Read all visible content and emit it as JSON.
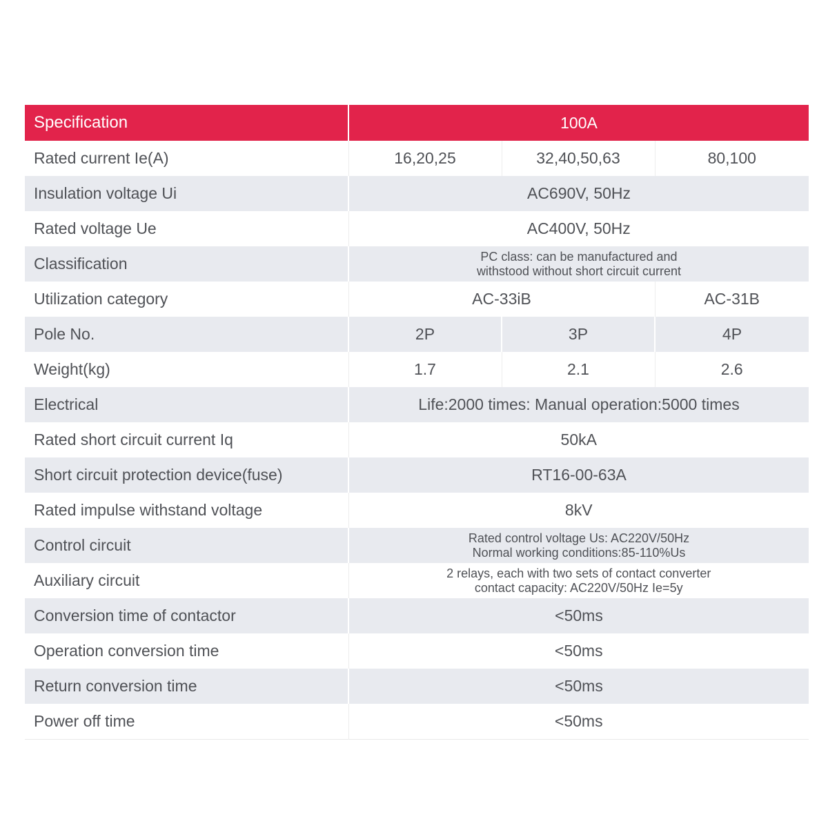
{
  "colors": {
    "header_bg": "#e2234b",
    "header_text": "#ffffff",
    "row_bg": "#ffffff",
    "row_alt_bg": "#e8eaef",
    "text": "#4f5156",
    "divider_light": "#ededed",
    "divider_white": "#ffffff",
    "table_border": "#e9e9e9"
  },
  "table": {
    "header": {
      "label": "Specification",
      "value": "100A"
    },
    "rows": [
      {
        "label": "Rated current Ie(A)",
        "cells": [
          "16,20,25",
          "32,40,50,63",
          "80,100"
        ]
      },
      {
        "label": "Insulation voltage Ui",
        "cells": [
          "AC690V, 50Hz"
        ]
      },
      {
        "label": "Rated voltage Ue",
        "cells": [
          "AC400V, 50Hz"
        ]
      },
      {
        "label": "Classification",
        "lines": [
          "PC class: can be manufactured and",
          "withstood without short circuit current"
        ]
      },
      {
        "label": "Utilization category",
        "cells": [
          {
            "text": "AC-33iB",
            "span": 2
          },
          {
            "text": "AC-31B",
            "span": 1
          }
        ]
      },
      {
        "label": "Pole No.",
        "cells": [
          "2P",
          "3P",
          "4P"
        ]
      },
      {
        "label": "Weight(kg)",
        "cells": [
          "1.7",
          "2.1",
          "2.6"
        ]
      },
      {
        "label": "Electrical",
        "cells": [
          "Life:2000 times: Manual operation:5000 times"
        ]
      },
      {
        "label": "Rated short circuit current Iq",
        "cells": [
          "50kA"
        ]
      },
      {
        "label": "Short circuit protection device(fuse)",
        "cells": [
          "RT16-00-63A"
        ]
      },
      {
        "label": "Rated impulse withstand voltage",
        "cells": [
          "8kV"
        ]
      },
      {
        "label": "Control circuit",
        "lines": [
          "Rated control voltage Us: AC220V/50Hz",
          "Normal working conditions:85-110%Us"
        ]
      },
      {
        "label": "Auxiliary circuit",
        "lines": [
          "2 relays, each with two sets of contact converter",
          "contact capacity: AC220V/50Hz Ie=5y"
        ]
      },
      {
        "label": "Conversion time of contactor",
        "cells": [
          "<50ms"
        ]
      },
      {
        "label": "Operation conversion time",
        "cells": [
          "<50ms"
        ]
      },
      {
        "label": "Return conversion time",
        "cells": [
          "<50ms"
        ]
      },
      {
        "label": "Power off time",
        "cells": [
          "<50ms"
        ]
      }
    ]
  }
}
